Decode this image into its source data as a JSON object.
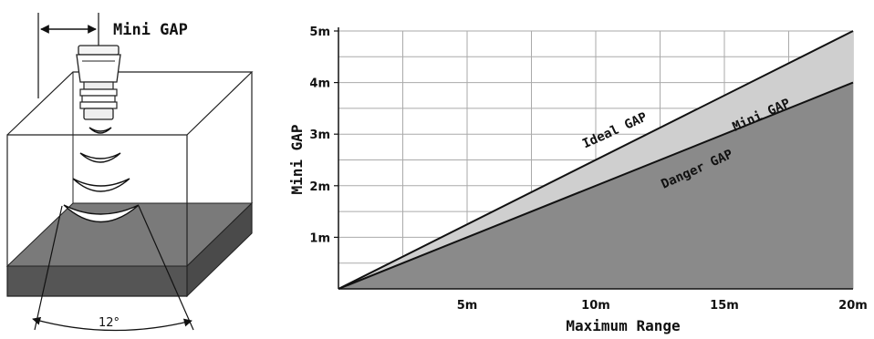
{
  "illustration": {
    "gap_label": "Mini GAP",
    "beam_angle_label": "12°"
  },
  "chart_data": {
    "type": "area",
    "title": "",
    "xlabel": "Maximum Range",
    "ylabel": "Mini GAP",
    "xlim": [
      0,
      20
    ],
    "ylim": [
      0,
      5
    ],
    "x_ticks": [
      5,
      10,
      15,
      20
    ],
    "x_tick_labels": [
      "5m",
      "10m",
      "15m",
      "20m"
    ],
    "y_ticks": [
      1,
      2,
      3,
      4,
      5
    ],
    "y_tick_labels": [
      "1m",
      "2m",
      "3m",
      "4m",
      "5m"
    ],
    "grid": true,
    "x": [
      0,
      20
    ],
    "series": [
      {
        "name": "Ideal GAP",
        "values": [
          0,
          5
        ],
        "color": "#cfcfcf"
      },
      {
        "name": "Danger GAP",
        "values": [
          0,
          4
        ],
        "color": "#8a8a8a"
      }
    ],
    "annotations": [
      {
        "text": "Ideal GAP",
        "x": 10.8,
        "y": 3.0
      },
      {
        "text": "Mini GAP",
        "x": 16.5,
        "y": 3.3
      },
      {
        "text": "Danger GAP",
        "x": 14.0,
        "y": 2.25
      }
    ]
  }
}
